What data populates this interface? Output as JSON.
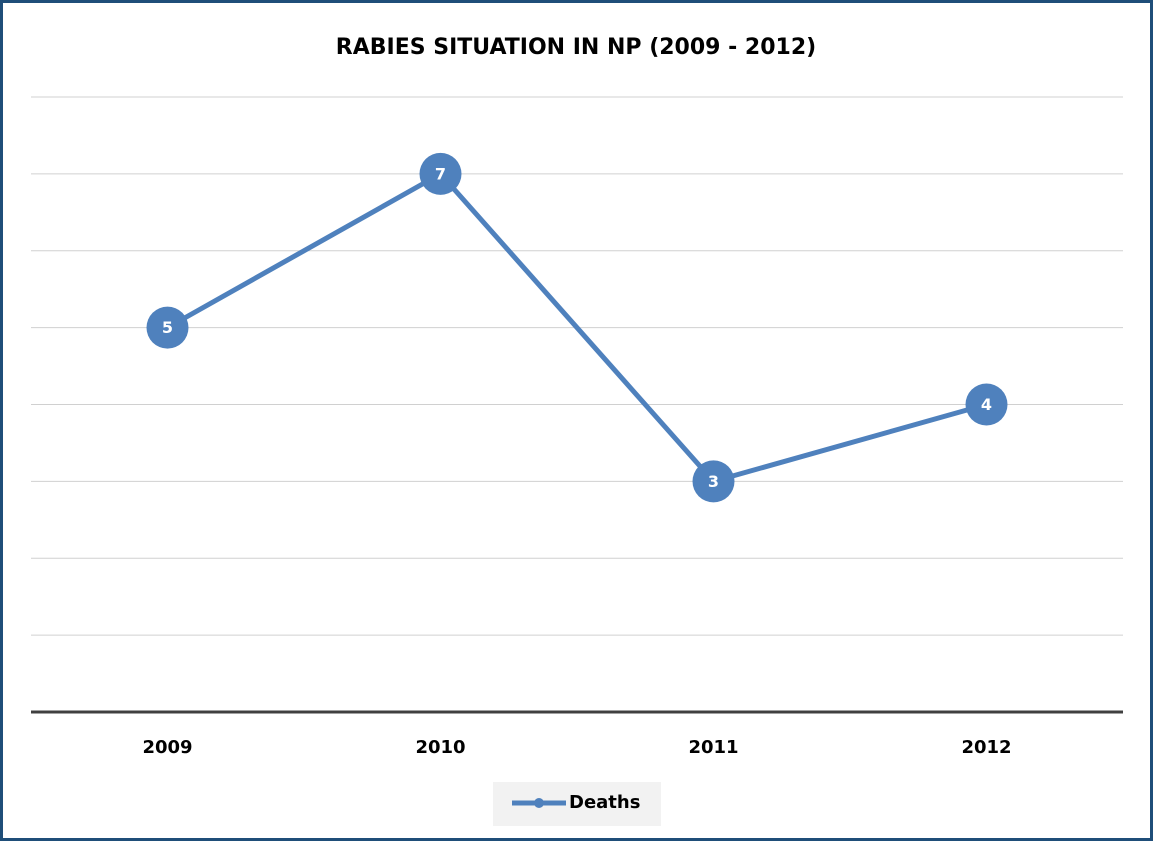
{
  "chart_data": {
    "type": "line",
    "title": "RABIES SITUATION IN NP (2009 - 2012)",
    "categories": [
      "2009",
      "2010",
      "2011",
      "2012"
    ],
    "series": [
      {
        "name": "Deaths",
        "color": "#4f81bd",
        "values": [
          5,
          7,
          3,
          4
        ]
      }
    ],
    "ylim": [
      0,
      8
    ],
    "yticks": [
      0,
      1,
      2,
      3,
      4,
      5,
      6,
      7,
      8
    ],
    "grid": true,
    "legend": "bottom"
  }
}
